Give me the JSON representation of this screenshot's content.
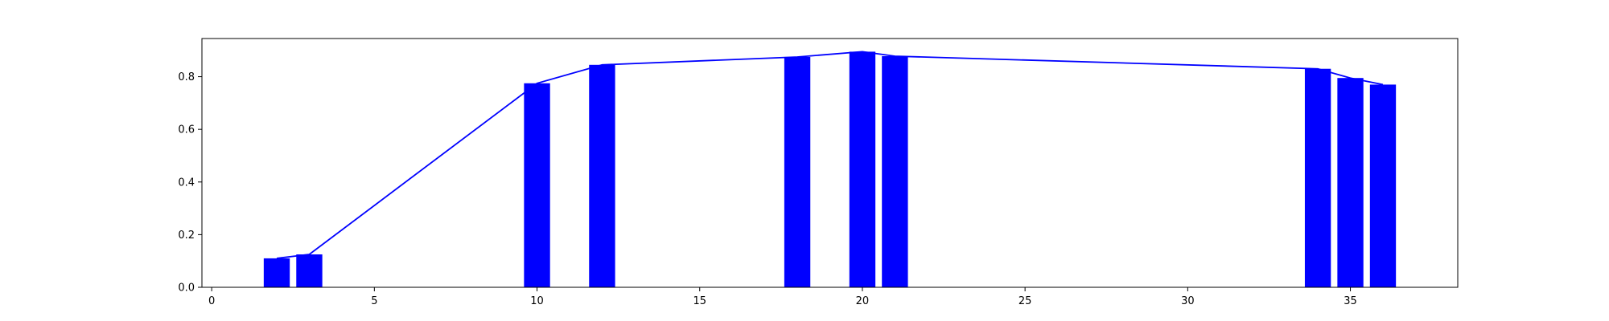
{
  "chart_data": {
    "type": "bar",
    "title": "",
    "xlabel": "",
    "ylabel": "",
    "xlim": [
      -0.3,
      38.3
    ],
    "ylim": [
      0.0,
      0.945
    ],
    "grid": false,
    "x_ticks": [
      "0",
      "5",
      "10",
      "15",
      "20",
      "25",
      "30",
      "35"
    ],
    "y_ticks": [
      "0.0",
      "0.2",
      "0.4",
      "0.6",
      "0.8"
    ],
    "series": [
      {
        "type": "bar",
        "x": [
          2,
          3,
          10,
          12,
          18,
          20,
          21,
          34,
          35,
          36
        ],
        "values": [
          0.11,
          0.125,
          0.775,
          0.845,
          0.875,
          0.895,
          0.878,
          0.83,
          0.795,
          0.77
        ],
        "color": "#0000ff"
      },
      {
        "type": "line",
        "x": [
          2,
          3,
          10,
          12,
          18,
          20,
          21,
          34,
          35,
          36
        ],
        "values": [
          0.11,
          0.125,
          0.775,
          0.845,
          0.875,
          0.895,
          0.878,
          0.83,
          0.795,
          0.77
        ],
        "color": "#0000ff"
      }
    ]
  }
}
